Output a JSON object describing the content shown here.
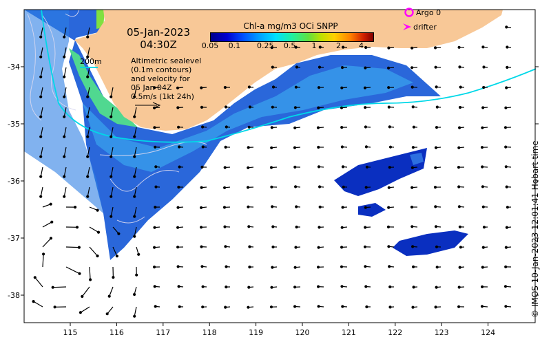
{
  "title": {
    "date": "05-Jan-2023",
    "time": "04:30Z"
  },
  "colorbar": {
    "title": "Chl-a mg/m3 OCi SNPP",
    "ticks": [
      "0.05",
      "0.1",
      "0.25",
      "0.5",
      "1",
      "2",
      "4"
    ],
    "colors": [
      "#00008b",
      "#0050ff",
      "#00e0ff",
      "#60e040",
      "#ffd000",
      "#ff8000",
      "#800000"
    ]
  },
  "legend": {
    "argo": "Argo 0",
    "drifter": "drifter",
    "argo_color": "#ff00ff",
    "drifter_color": "#ff00ff"
  },
  "annotations": {
    "contour_label": "200m",
    "contour_color": "#00d8e8",
    "sealevel_lines": [
      "Altimetric sealevel",
      "(0.1m contours)",
      "and velocity for",
      "05 Jan 04Z",
      "0.5m/s (1kt 24h)"
    ]
  },
  "axes": {
    "x_ticks": [
      "115",
      "116",
      "117",
      "118",
      "119",
      "120",
      "121",
      "122",
      "123",
      "124"
    ],
    "y_ticks": [
      "-34",
      "-35",
      "-36",
      "-37",
      "-38"
    ]
  },
  "colors": {
    "land": "#f8c897",
    "ocean_background": "#ffffff",
    "chl_low": "#0a2fc0",
    "chl_mid": "#2f9ae8",
    "chl_high": "#40e070"
  },
  "copyright": "© IMOS 10-Jan-2023 12:01:41 Hobart time"
}
